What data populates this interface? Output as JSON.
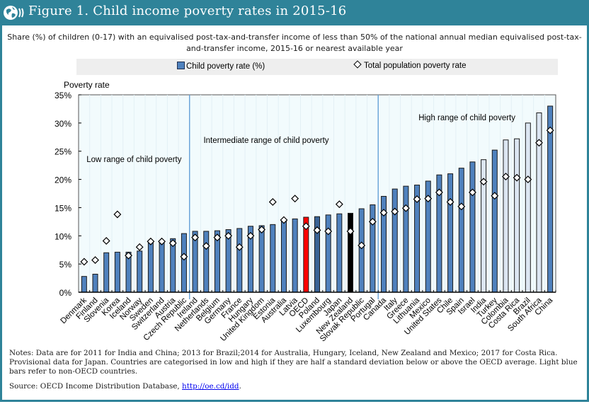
{
  "header": {
    "title": "Figure 1. Child income poverty rates in 2015-16",
    "logo_icon": "oecd-globe-icon"
  },
  "subtitle": "Share (%) of children (0-17) with an equivalised post-tax-and-transfer income of less than 50% of the national annual median equivalised post-tax-and-transfer income, 2015-16 or nearest available year",
  "legend": {
    "bar_label": "Child poverty rate (%)",
    "marker_label": "Total population poverty rate"
  },
  "colors": {
    "header": "#2f8399",
    "bar_oecd_country": "#4f81bd",
    "bar_non_oecd": "#dce6f2",
    "bar_oecd_average": "#ff0000",
    "bar_highlight_dark": "#3a6395",
    "bar_highlight_black": "#000000",
    "plot_background": "#f2fbfd",
    "divider": "#5b9bd5"
  },
  "chart_data": {
    "type": "bar",
    "title": "Figure 1. Child income poverty rates in 2015-16",
    "ylabel": "Poverty rate",
    "xlabel": "",
    "ylim": [
      0,
      35
    ],
    "yticks": [
      "0%",
      "5%",
      "10%",
      "15%",
      "20%",
      "25%",
      "30%",
      "35%"
    ],
    "ytick_values": [
      0,
      5,
      10,
      15,
      20,
      25,
      30,
      35
    ],
    "grid": true,
    "legend_position": "top",
    "annotations": [
      {
        "text": "Low range of child poverty",
        "group": "low"
      },
      {
        "text": "Intermediate range of child poverty",
        "group": "intermediate"
      },
      {
        "text": "High range of  child poverty",
        "group": "high"
      }
    ],
    "categories": [
      "Denmark",
      "Finland",
      "Slovenia",
      "Korea",
      "Iceland",
      "Norway",
      "Sweden",
      "Switzerland",
      "Austria",
      "Czech Republic",
      "Ireland",
      "Netherlands",
      "Belgium",
      "Germany",
      "France",
      "Hungary",
      "United Kingdom",
      "Estonia",
      "Australia",
      "Latvia",
      "OECD",
      "Poland",
      "Luxembourg",
      "Japan",
      "New Zealand",
      "Slovak Republic",
      "Portugal",
      "Canada",
      "Italy",
      "Greece",
      "Lithuania",
      "Mexico",
      "United States",
      "Chile",
      "Spain",
      "Israel",
      "India",
      "Turkey",
      "Colombia",
      "Costa Rica",
      "Brazil",
      "South Africa",
      "China"
    ],
    "groups": [
      "low",
      "low",
      "low",
      "low",
      "low",
      "low",
      "low",
      "low",
      "low",
      "low",
      "intermediate",
      "intermediate",
      "intermediate",
      "intermediate",
      "intermediate",
      "intermediate",
      "intermediate",
      "intermediate",
      "intermediate",
      "intermediate",
      "intermediate",
      "intermediate",
      "intermediate",
      "intermediate",
      "intermediate",
      "intermediate",
      "intermediate",
      "high",
      "high",
      "high",
      "high",
      "high",
      "high",
      "high",
      "high",
      "high",
      "high",
      "high",
      "high",
      "high",
      "high",
      "high",
      "high"
    ],
    "bar_styles": [
      "oecd",
      "oecd",
      "oecd",
      "oecd",
      "oecd",
      "oecd",
      "oecd",
      "oecd",
      "oecd",
      "oecd",
      "oecd",
      "oecd",
      "oecd",
      "oecd",
      "oecd",
      "oecd",
      "oecd",
      "oecd",
      "oecd",
      "oecd",
      "average",
      "dark",
      "oecd",
      "oecd",
      "black",
      "oecd",
      "oecd",
      "oecd",
      "oecd",
      "oecd",
      "oecd",
      "oecd",
      "oecd",
      "oecd",
      "oecd",
      "oecd",
      "nonoecd",
      "oecd",
      "nonoecd",
      "nonoecd",
      "nonoecd",
      "nonoecd",
      "oecd"
    ],
    "series": [
      {
        "name": "Child poverty rate (%)",
        "type": "bar",
        "values": [
          2.8,
          3.2,
          7.0,
          7.1,
          7.1,
          7.3,
          9.1,
          9.1,
          9.5,
          10.4,
          10.8,
          10.8,
          10.9,
          11.1,
          11.3,
          11.7,
          11.8,
          12.0,
          12.9,
          13.0,
          13.3,
          13.4,
          13.7,
          13.9,
          14.0,
          14.8,
          15.5,
          17.0,
          18.3,
          18.8,
          19.0,
          19.7,
          20.8,
          21.0,
          22.0,
          23.1,
          23.5,
          25.2,
          27.0,
          27.2,
          30.0,
          31.8,
          33.0
        ]
      },
      {
        "name": "Total population poverty rate",
        "type": "marker",
        "values": [
          5.4,
          5.7,
          9.1,
          13.8,
          6.5,
          8.0,
          9.0,
          9.0,
          8.7,
          6.3,
          9.7,
          8.2,
          9.7,
          10.0,
          8.0,
          10.0,
          11.1,
          16.0,
          12.8,
          16.6,
          11.7,
          11.0,
          10.8,
          15.6,
          10.8,
          8.3,
          12.5,
          14.1,
          14.3,
          14.9,
          16.5,
          16.6,
          17.7,
          16.0,
          15.2,
          17.7,
          19.6,
          17.1,
          20.5,
          20.3,
          20.0,
          26.5,
          28.7
        ]
      }
    ]
  },
  "notes": "Notes: Data are for 2011 for India and China;  2013 for Brazil;2014 for Australia, Hungary, Iceland, New Zealand and Mexico; 2017 for Costa Rica. Provisional data for Japan. Countries are categorised in low and high if they are half a standard deviation below or above the OECD average. Light blue bars refer to non-OECD countries.",
  "source": {
    "prefix": "Source: OECD Income Distribution Database,  ",
    "link_text": "http://oe.cd/idd",
    "suffix": "."
  }
}
